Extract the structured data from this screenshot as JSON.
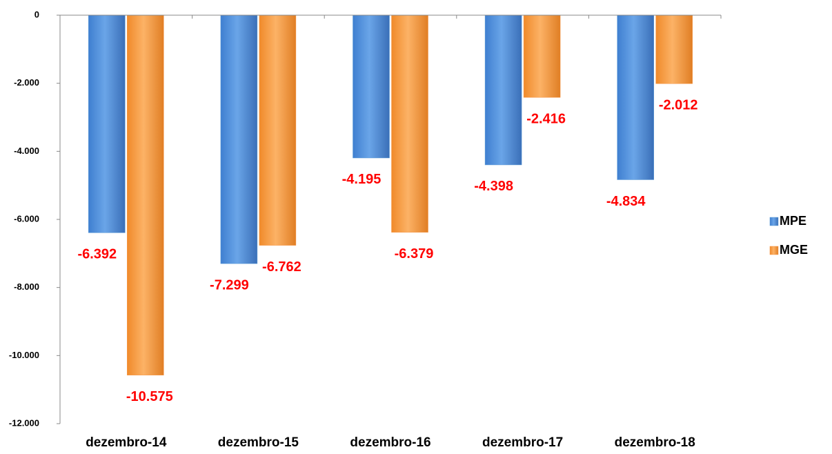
{
  "chart_data": {
    "type": "bar",
    "categories": [
      "dezembro-14",
      "dezembro-15",
      "dezembro-16",
      "dezembro-17",
      "dezembro-18"
    ],
    "series": [
      {
        "name": "MPE",
        "color": "#5b9bd5",
        "values": [
          -6392,
          -7299,
          -4195,
          -4398,
          -4834
        ],
        "value_labels": [
          "-6.392",
          "-7.299",
          "-4.195",
          "-4.398",
          "-4.834"
        ]
      },
      {
        "name": "MGE",
        "color": "#f79646",
        "values": [
          -10575,
          -6762,
          -6379,
          -2416,
          -2012
        ],
        "value_labels": [
          "-10.575",
          "-6.762",
          "-6.379",
          "-2.416",
          "-2.012"
        ]
      }
    ],
    "ylim": [
      -12000,
      0
    ],
    "yticks": [
      0,
      {
        "value": -2000,
        "label": "-2.000"
      },
      {
        "value": -4000,
        "label": "-4.000"
      },
      {
        "value": -6000,
        "label": "-6.000"
      },
      {
        "value": -8000,
        "label": "-8.000"
      },
      {
        "value": -10000,
        "label": "-10.000"
      },
      {
        "value": -12000,
        "label": "-12.000"
      }
    ],
    "legend": "right"
  }
}
